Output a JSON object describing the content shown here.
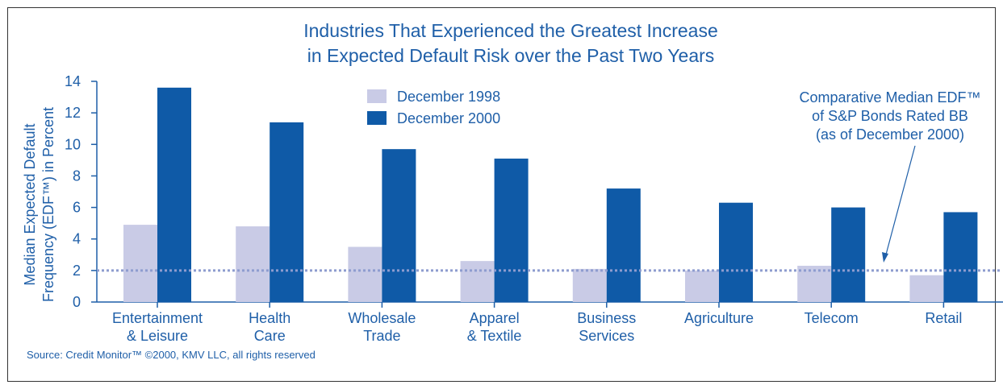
{
  "chart_data": {
    "type": "bar",
    "title_lines": [
      "Industries That Experienced the Greatest Increase",
      "in Expected Default Risk over the Past Two Years"
    ],
    "ylabel_lines": [
      "Median Expected Default",
      "Frequency (EDF™) in  Percent"
    ],
    "xlabel": "",
    "ylim": [
      0,
      14
    ],
    "yticks": [
      0,
      2,
      4,
      6,
      8,
      10,
      12,
      14
    ],
    "grid": false,
    "legend_position": "top-left",
    "categories": [
      [
        "Entertainment",
        "& Leisure"
      ],
      [
        "Health",
        "Care"
      ],
      [
        "Wholesale",
        "Trade"
      ],
      [
        "Apparel",
        "& Textile"
      ],
      [
        "Business",
        "Services"
      ],
      [
        "Agriculture"
      ],
      [
        "Telecom"
      ],
      [
        "Retail"
      ]
    ],
    "series": [
      {
        "name": "December 1998",
        "color": "#c9cbe6",
        "values": [
          4.9,
          4.8,
          3.5,
          2.6,
          2.1,
          2.0,
          2.3,
          1.7
        ]
      },
      {
        "name": "December 2000",
        "color": "#0f5aa7",
        "values": [
          13.6,
          11.4,
          9.7,
          9.1,
          7.2,
          6.3,
          6.0,
          5.7
        ]
      }
    ],
    "reference_line": {
      "value": 2.0,
      "color": "#8e9ccf",
      "label_lines": [
        "Comparative Median EDF™",
        "of S&P Bonds Rated BB",
        "(as of December 2000)"
      ]
    },
    "source": "Source: Credit Monitor™ ©2000, KMV LLC, all rights reserved"
  }
}
